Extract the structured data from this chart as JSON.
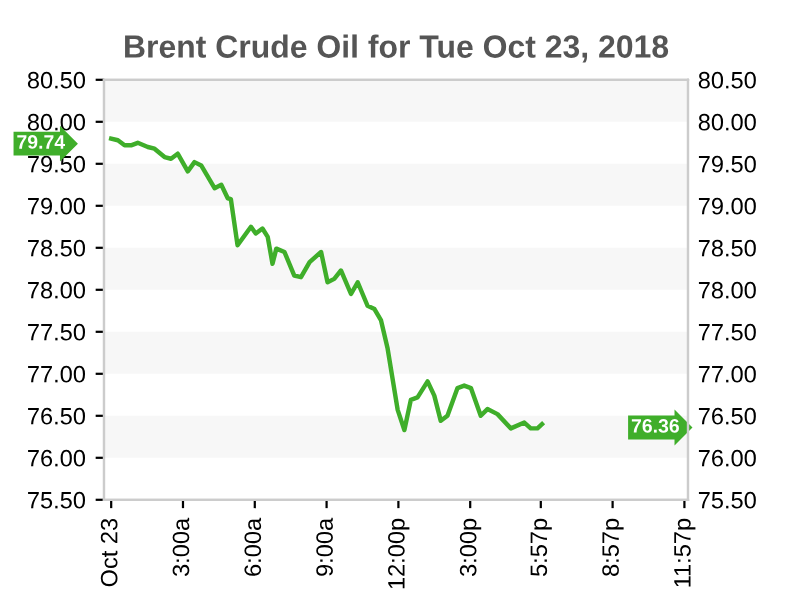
{
  "chart_data": {
    "type": "line",
    "title": "Brent Crude Oil for Tue Oct 23, 2018",
    "series": [
      {
        "color": "#3fae2a",
        "x": [
          0,
          0.28,
          0.56,
          0.83,
          1.11,
          1.53,
          1.81,
          2.23,
          2.5,
          2.78,
          3.2,
          3.48,
          3.76,
          4.32,
          4.6,
          4.87,
          5.0,
          5.28,
          5.84,
          6.04,
          6.32,
          6.54,
          6.74,
          6.9,
          7.24,
          7.65,
          7.93,
          8.29,
          8.77,
          9.04,
          9.32,
          9.6,
          10.02,
          10.3,
          10.71,
          11.0,
          11.27,
          11.55,
          11.97,
          12.25,
          12.52,
          12.8,
          13.22,
          13.5,
          13.77,
          14.05,
          14.47,
          14.75,
          15.03,
          15.44,
          15.72,
          16.14,
          16.7,
          17.26,
          17.53,
          17.81,
          18.0
        ],
        "values": [
          79.8,
          79.78,
          79.72,
          79.72,
          79.75,
          79.7,
          79.68,
          79.58,
          79.56,
          79.62,
          79.41,
          79.52,
          79.48,
          79.21,
          79.25,
          79.09,
          79.08,
          78.53,
          78.75,
          78.67,
          78.73,
          78.63,
          78.31,
          78.49,
          78.45,
          78.17,
          78.15,
          78.33,
          78.45,
          78.09,
          78.13,
          78.23,
          77.95,
          78.09,
          77.81,
          77.77,
          77.64,
          77.3,
          76.57,
          76.33,
          76.69,
          76.72,
          76.91,
          76.74,
          76.44,
          76.5,
          76.83,
          76.86,
          76.83,
          76.5,
          76.58,
          76.52,
          76.35,
          76.42,
          76.35,
          76.35,
          76.4
        ]
      }
    ],
    "xlim": [
      -0.3,
      24.1
    ],
    "xticks": [
      {
        "value": 0,
        "label": "Oct 23"
      },
      {
        "value": 3,
        "label": "3:00a"
      },
      {
        "value": 6,
        "label": "6:00a"
      },
      {
        "value": 9,
        "label": "9:00a"
      },
      {
        "value": 12,
        "label": "12:00p"
      },
      {
        "value": 15,
        "label": "3:00p"
      },
      {
        "value": 17.95,
        "label": "5:57p"
      },
      {
        "value": 20.95,
        "label": "8:57p"
      },
      {
        "value": 23.95,
        "label": "11:57p"
      }
    ],
    "ylim": [
      75.5,
      80.5
    ],
    "yticks": [
      {
        "value": 75.5,
        "label": "75.50"
      },
      {
        "value": 76,
        "label": "76.00"
      },
      {
        "value": 76.5,
        "label": "76.50"
      },
      {
        "value": 77,
        "label": "77.00"
      },
      {
        "value": 77.5,
        "label": "77.50"
      },
      {
        "value": 78,
        "label": "78.00"
      },
      {
        "value": 78.5,
        "label": "78.50"
      },
      {
        "value": 79,
        "label": "79.00"
      },
      {
        "value": 79.5,
        "label": "79.50"
      },
      {
        "value": 80,
        "label": "80.00"
      },
      {
        "value": 80.5,
        "label": "80.50"
      }
    ],
    "y2lim": [
      75.5,
      80.5
    ],
    "y2ticks": [
      {
        "value": 75.5,
        "label": "75.50"
      },
      {
        "value": 76,
        "label": "76.00"
      },
      {
        "value": 76.5,
        "label": "76.50"
      },
      {
        "value": 77,
        "label": "77.00"
      },
      {
        "value": 77.5,
        "label": "77.50"
      },
      {
        "value": 78,
        "label": "78.00"
      },
      {
        "value": 78.5,
        "label": "78.50"
      },
      {
        "value": 79,
        "label": "79.00"
      },
      {
        "value": 79.5,
        "label": "79.50"
      },
      {
        "value": 80,
        "label": "80.00"
      },
      {
        "value": 80.5,
        "label": "80.50"
      }
    ],
    "annotations": [
      {
        "text": "79.74",
        "x": -0.3,
        "y": 79.74
      },
      {
        "text": "76.36",
        "x": 24.1,
        "y": 76.36
      }
    ],
    "bands": [
      {
        "axis": "y",
        "from": 76,
        "to": 76.5,
        "color": "#f7f7f7"
      },
      {
        "axis": "y",
        "from": 77,
        "to": 77.5,
        "color": "#f7f7f7"
      },
      {
        "axis": "y",
        "from": 78,
        "to": 78.5,
        "color": "#f7f7f7"
      },
      {
        "axis": "y",
        "from": 79,
        "to": 79.5,
        "color": "#f7f7f7"
      },
      {
        "axis": "y",
        "from": 80,
        "to": 80.5,
        "color": "#f7f7f7"
      }
    ],
    "marker": "none",
    "line_style": "solid"
  }
}
